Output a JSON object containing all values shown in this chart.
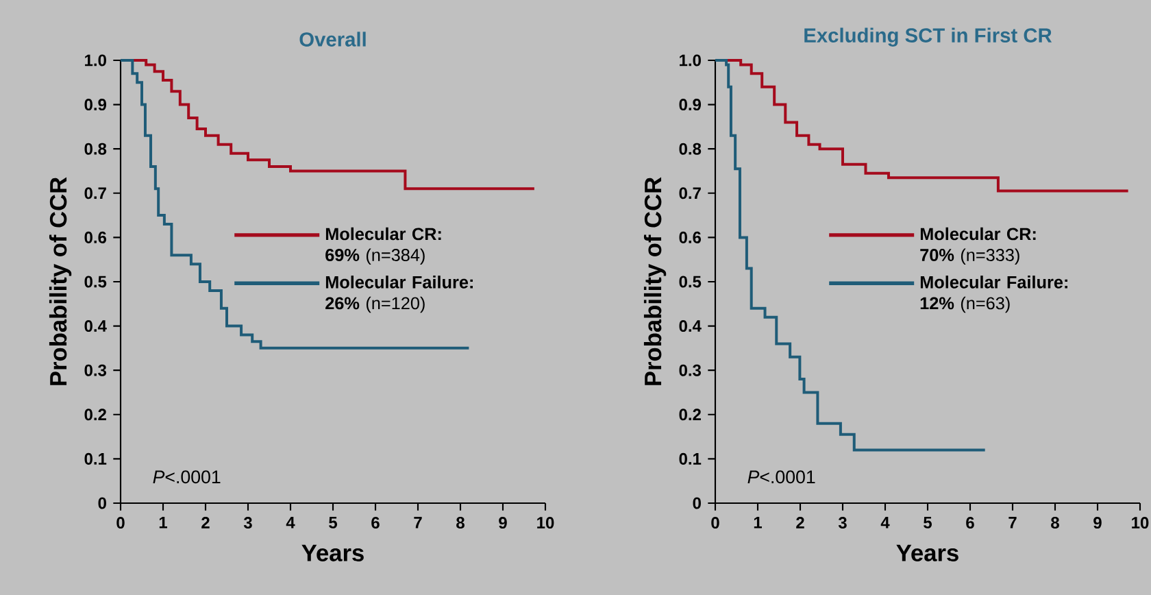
{
  "chart_data": [
    {
      "type": "step",
      "title": "Overall",
      "xlabel": "Years",
      "ylabel": "Probability of CCR",
      "xlim": [
        0,
        10
      ],
      "ylim": [
        0,
        1
      ],
      "xticks": [
        0,
        1,
        2,
        3,
        4,
        5,
        6,
        7,
        8,
        9,
        10
      ],
      "yticks": [
        0,
        0.1,
        0.2,
        0.3,
        0.4,
        0.5,
        0.6,
        0.7,
        0.8,
        0.9,
        {
          "value": 1,
          "label": "1.0"
        }
      ],
      "legend": "right",
      "annotations": [
        "*P*<.0001"
      ],
      "series": [
        {
          "name": "**Molecular CR: 69%** (n=384)",
          "color": "#a50b1d",
          "x": [
            0,
            0.4,
            0.6,
            0.8,
            1.0,
            1.2,
            1.4,
            1.6,
            1.8,
            2.0,
            2.3,
            2.6,
            3.0,
            3.5,
            4.0,
            6.7,
            9.74
          ],
          "values": [
            1,
            1,
            0.99,
            0.975,
            0.955,
            0.93,
            0.9,
            0.87,
            0.845,
            0.83,
            0.81,
            0.79,
            0.775,
            0.76,
            0.75,
            0.71,
            0.71
          ]
        },
        {
          "name": "**Molecular Failure: 26%** (n=120)",
          "color": "#1f5c78",
          "x": [
            0,
            0.28,
            0.39,
            0.5,
            0.58,
            0.71,
            0.82,
            0.89,
            1.03,
            1.2,
            1.66,
            1.87,
            2.1,
            2.37,
            2.5,
            2.84,
            3.1,
            3.3,
            8.2
          ],
          "values": [
            1,
            0.97,
            0.95,
            0.9,
            0.83,
            0.76,
            0.71,
            0.65,
            0.63,
            0.56,
            0.54,
            0.5,
            0.48,
            0.44,
            0.4,
            0.38,
            0.365,
            0.35,
            0.35
          ]
        }
      ]
    },
    {
      "type": "step",
      "title": "Excluding SCT in First CR",
      "xlabel": "Years",
      "ylabel": "Probability of CCR",
      "xlim": [
        0,
        10
      ],
      "ylim": [
        0,
        1
      ],
      "xticks": [
        0,
        1,
        2,
        3,
        4,
        5,
        6,
        7,
        8,
        9,
        10
      ],
      "yticks": [
        0,
        0.1,
        0.2,
        0.3,
        0.4,
        0.5,
        0.6,
        0.7,
        0.8,
        0.9,
        {
          "value": 1,
          "label": "1.0"
        }
      ],
      "legend": "right",
      "annotations": [
        "*P*<.0001"
      ],
      "series": [
        {
          "name": "**Molecular CR: 70%** (n=333)",
          "color": "#a50b1d",
          "x": [
            0,
            0.4,
            0.6,
            0.85,
            1.1,
            1.39,
            1.65,
            1.92,
            2.2,
            2.46,
            3.0,
            3.54,
            4.08,
            6.66,
            9.72
          ],
          "values": [
            1,
            1,
            0.99,
            0.97,
            0.94,
            0.9,
            0.86,
            0.83,
            0.81,
            0.8,
            0.765,
            0.745,
            0.735,
            0.705,
            0.705
          ]
        },
        {
          "name": "**Molecular Failure: 12%** (n=63)",
          "color": "#1f5c78",
          "x": [
            0,
            0.26,
            0.31,
            0.37,
            0.47,
            0.58,
            0.74,
            0.85,
            1.17,
            1.44,
            1.76,
            1.99,
            2.09,
            2.41,
            2.95,
            3.27,
            6.35
          ],
          "values": [
            1,
            0.99,
            0.94,
            0.83,
            0.755,
            0.6,
            0.53,
            0.44,
            0.42,
            0.36,
            0.33,
            0.28,
            0.25,
            0.18,
            0.155,
            0.12,
            0.12
          ]
        }
      ]
    }
  ]
}
